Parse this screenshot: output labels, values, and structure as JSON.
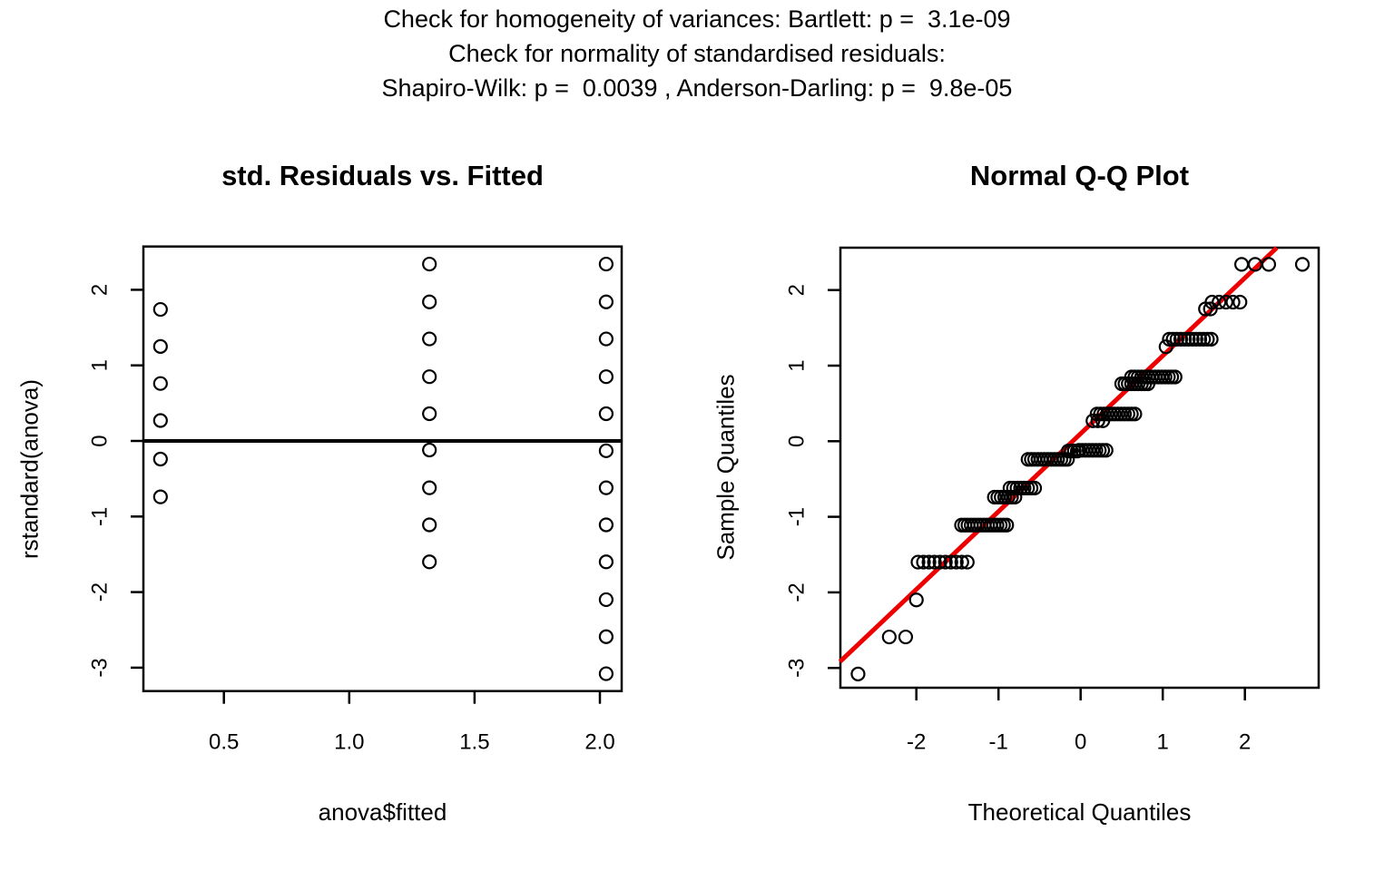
{
  "header": {
    "line1": "Check for homogeneity of variances: Bartlett: p =  3.1e-09",
    "line2": "Check for normality of standardised residuals:",
    "line3": "Shapiro-Wilk: p =  0.0039 , Anderson-Darling: p =  9.8e-05"
  },
  "colors": {
    "foreground": "#000000",
    "qq_line": "#EE0000",
    "background": "#ffffff"
  },
  "chart_data": [
    {
      "type": "scatter",
      "title": "std. Residuals vs. Fitted",
      "xlabel": "anova$fitted",
      "ylabel": "rstandard(anova)",
      "xlim": [
        0.18,
        2.09
      ],
      "ylim": [
        -3.28,
        2.56
      ],
      "grid": false,
      "x_ticks": {
        "values": [
          0.5,
          1.0,
          1.5,
          2.0
        ],
        "labels": [
          "0.5",
          "1.0",
          "1.5",
          "2.0"
        ]
      },
      "y_ticks": {
        "values": [
          2,
          1,
          0,
          -1,
          -2,
          -3
        ],
        "labels": [
          "2",
          "1",
          "0",
          "-1",
          "-2",
          "-3"
        ]
      },
      "hline_y": 0,
      "columns": [
        {
          "x": 0.247,
          "values": [
            1.74,
            1.25,
            0.76,
            0.27,
            -0.24,
            -0.74
          ]
        },
        {
          "x": 1.32,
          "values": [
            2.34,
            1.84,
            1.35,
            0.85,
            0.36,
            -0.12,
            -0.62,
            -1.11,
            -1.6
          ]
        },
        {
          "x": 2.025,
          "values": [
            2.34,
            1.84,
            1.35,
            0.85,
            0.36,
            -0.13,
            -0.62,
            -1.11,
            -1.6,
            -2.1,
            -2.59,
            -3.08
          ]
        }
      ]
    },
    {
      "type": "scatter",
      "title": "Normal Q-Q Plot",
      "xlabel": "Theoretical Quantiles",
      "ylabel": "Sample Quantiles",
      "xlim": [
        -2.93,
        2.9
      ],
      "ylim": [
        -3.26,
        2.56
      ],
      "grid": false,
      "x_ticks": {
        "values": [
          -2,
          -1,
          0,
          1,
          2
        ],
        "labels": [
          "-2",
          "-1",
          "0",
          "1",
          "2"
        ]
      },
      "y_ticks": {
        "values": [
          2,
          1,
          0,
          -1,
          -2,
          -3
        ],
        "labels": [
          "2",
          "1",
          "0",
          "-1",
          "-2",
          "-3"
        ]
      },
      "line": {
        "slope": 1.03,
        "intercept": 0.1
      },
      "bands": [
        {
          "y": 2.34,
          "x_start": 1.96,
          "x_end": 2.29,
          "n": 3
        },
        {
          "y": 2.34,
          "x_start": 2.7,
          "x_end": 2.7,
          "n": 1
        },
        {
          "y": 1.84,
          "x_start": 1.6,
          "x_end": 1.94,
          "n": 5
        },
        {
          "y": 1.75,
          "x_start": 1.52,
          "x_end": 1.58,
          "n": 2
        },
        {
          "y": 1.35,
          "x_start": 1.08,
          "x_end": 1.59,
          "n": 12
        },
        {
          "y": 1.25,
          "x_start": 1.04,
          "x_end": 1.04,
          "n": 1
        },
        {
          "y": 0.85,
          "x_start": 0.62,
          "x_end": 1.15,
          "n": 14
        },
        {
          "y": 0.76,
          "x_start": 0.5,
          "x_end": 0.82,
          "n": 9
        },
        {
          "y": 0.36,
          "x_start": 0.2,
          "x_end": 0.66,
          "n": 12
        },
        {
          "y": 0.27,
          "x_start": 0.15,
          "x_end": 0.27,
          "n": 3
        },
        {
          "y": -0.12,
          "x_start": -0.02,
          "x_end": 0.31,
          "n": 9
        },
        {
          "y": -0.13,
          "x_start": -0.15,
          "x_end": -0.04,
          "n": 4
        },
        {
          "y": -0.24,
          "x_start": -0.64,
          "x_end": -0.16,
          "n": 13
        },
        {
          "y": -0.62,
          "x_start": -0.86,
          "x_end": -0.56,
          "n": 8
        },
        {
          "y": -0.74,
          "x_start": -1.05,
          "x_end": -0.8,
          "n": 7
        },
        {
          "y": -1.11,
          "x_start": -1.45,
          "x_end": -0.9,
          "n": 15
        },
        {
          "y": -1.6,
          "x_start": -1.98,
          "x_end": -1.38,
          "n": 10
        },
        {
          "y": -2.1,
          "x_start": -2.0,
          "x_end": -2.0,
          "n": 1
        },
        {
          "y": -2.59,
          "x_start": -2.33,
          "x_end": -2.13,
          "n": 2
        },
        {
          "y": -3.08,
          "x_start": -2.71,
          "x_end": -2.71,
          "n": 1
        }
      ]
    }
  ]
}
